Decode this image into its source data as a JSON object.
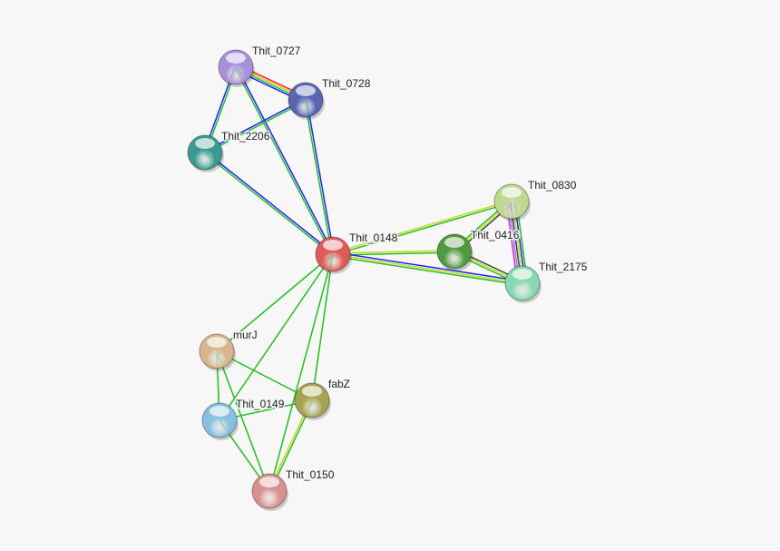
{
  "nodes": [
    {
      "id": "Thit_0727",
      "label": "Thit_0727",
      "color": "#a88fdc"
    },
    {
      "id": "Thit_0728",
      "label": "Thit_0728",
      "color": "#5866b0"
    },
    {
      "id": "Thit_2206",
      "label": "Thit_2206",
      "color": "#3a9a8e"
    },
    {
      "id": "Thit_0148",
      "label": "Thit_0148",
      "color": "#e05a5a"
    },
    {
      "id": "Thit_0830",
      "label": "Thit_0830",
      "color": "#bcd98c"
    },
    {
      "id": "Thit_0416",
      "label": "Thit_0416",
      "color": "#4f9a40"
    },
    {
      "id": "Thit_2175",
      "label": "Thit_2175",
      "color": "#86dab0"
    },
    {
      "id": "murJ",
      "label": "murJ",
      "color": "#d9b48c"
    },
    {
      "id": "fabZ",
      "label": "fabZ",
      "color": "#a6a450"
    },
    {
      "id": "Thit_0149",
      "label": "Thit_0149",
      "color": "#86c0e0"
    },
    {
      "id": "Thit_0150",
      "label": "Thit_0150",
      "color": "#d99090"
    }
  ],
  "edges": [
    {
      "a": "Thit_0727",
      "b": "Thit_0728",
      "colors": [
        "#ff2020",
        "#c8c820",
        "#20c020",
        "#2020ff"
      ]
    },
    {
      "a": "Thit_0727",
      "b": "Thit_2206",
      "colors": [
        "#20c020",
        "#2020ff"
      ]
    },
    {
      "a": "Thit_0727",
      "b": "Thit_0148",
      "colors": [
        "#2020ff",
        "#20c020"
      ]
    },
    {
      "a": "Thit_0728",
      "b": "Thit_2206",
      "colors": [
        "#20c020",
        "#2020ff"
      ]
    },
    {
      "a": "Thit_0728",
      "b": "Thit_0148",
      "colors": [
        "#2020ff",
        "#20c020"
      ]
    },
    {
      "a": "Thit_2206",
      "b": "Thit_0148",
      "colors": [
        "#2020ff",
        "#20c020"
      ]
    },
    {
      "a": "Thit_0148",
      "b": "Thit_0830",
      "colors": [
        "#c8d820",
        "#20c020"
      ]
    },
    {
      "a": "Thit_0148",
      "b": "Thit_0416",
      "colors": [
        "#c8d820",
        "#20c020"
      ]
    },
    {
      "a": "Thit_0148",
      "b": "Thit_2175",
      "colors": [
        "#2020ff",
        "#c8d820",
        "#20c020"
      ]
    },
    {
      "a": "Thit_0830",
      "b": "Thit_0416",
      "colors": [
        "#404040",
        "#c8d820",
        "#20c020"
      ]
    },
    {
      "a": "Thit_0830",
      "b": "Thit_2175",
      "colors": [
        "#20c020",
        "#2020ff",
        "#c8d820",
        "#404040",
        "#8080ff",
        "#e020e0"
      ]
    },
    {
      "a": "Thit_0416",
      "b": "Thit_2175",
      "colors": [
        "#404040",
        "#c8d820",
        "#20c020"
      ]
    },
    {
      "a": "Thit_0148",
      "b": "murJ",
      "colors": [
        "#20c020"
      ]
    },
    {
      "a": "Thit_0148",
      "b": "Thit_0149",
      "colors": [
        "#20c020"
      ]
    },
    {
      "a": "Thit_0148",
      "b": "fabZ",
      "colors": [
        "#20c020"
      ]
    },
    {
      "a": "Thit_0148",
      "b": "Thit_0150",
      "colors": [
        "#20c020"
      ]
    },
    {
      "a": "murJ",
      "b": "Thit_0149",
      "colors": [
        "#20c020"
      ]
    },
    {
      "a": "murJ",
      "b": "fabZ",
      "colors": [
        "#20c020"
      ]
    },
    {
      "a": "murJ",
      "b": "Thit_0150",
      "colors": [
        "#20c020"
      ]
    },
    {
      "a": "Thit_0149",
      "b": "fabZ",
      "colors": [
        "#20c020"
      ]
    },
    {
      "a": "Thit_0149",
      "b": "Thit_0150",
      "colors": [
        "#20c020"
      ]
    },
    {
      "a": "fabZ",
      "b": "Thit_0150",
      "colors": [
        "#20c020",
        "#c8d820"
      ]
    }
  ]
}
